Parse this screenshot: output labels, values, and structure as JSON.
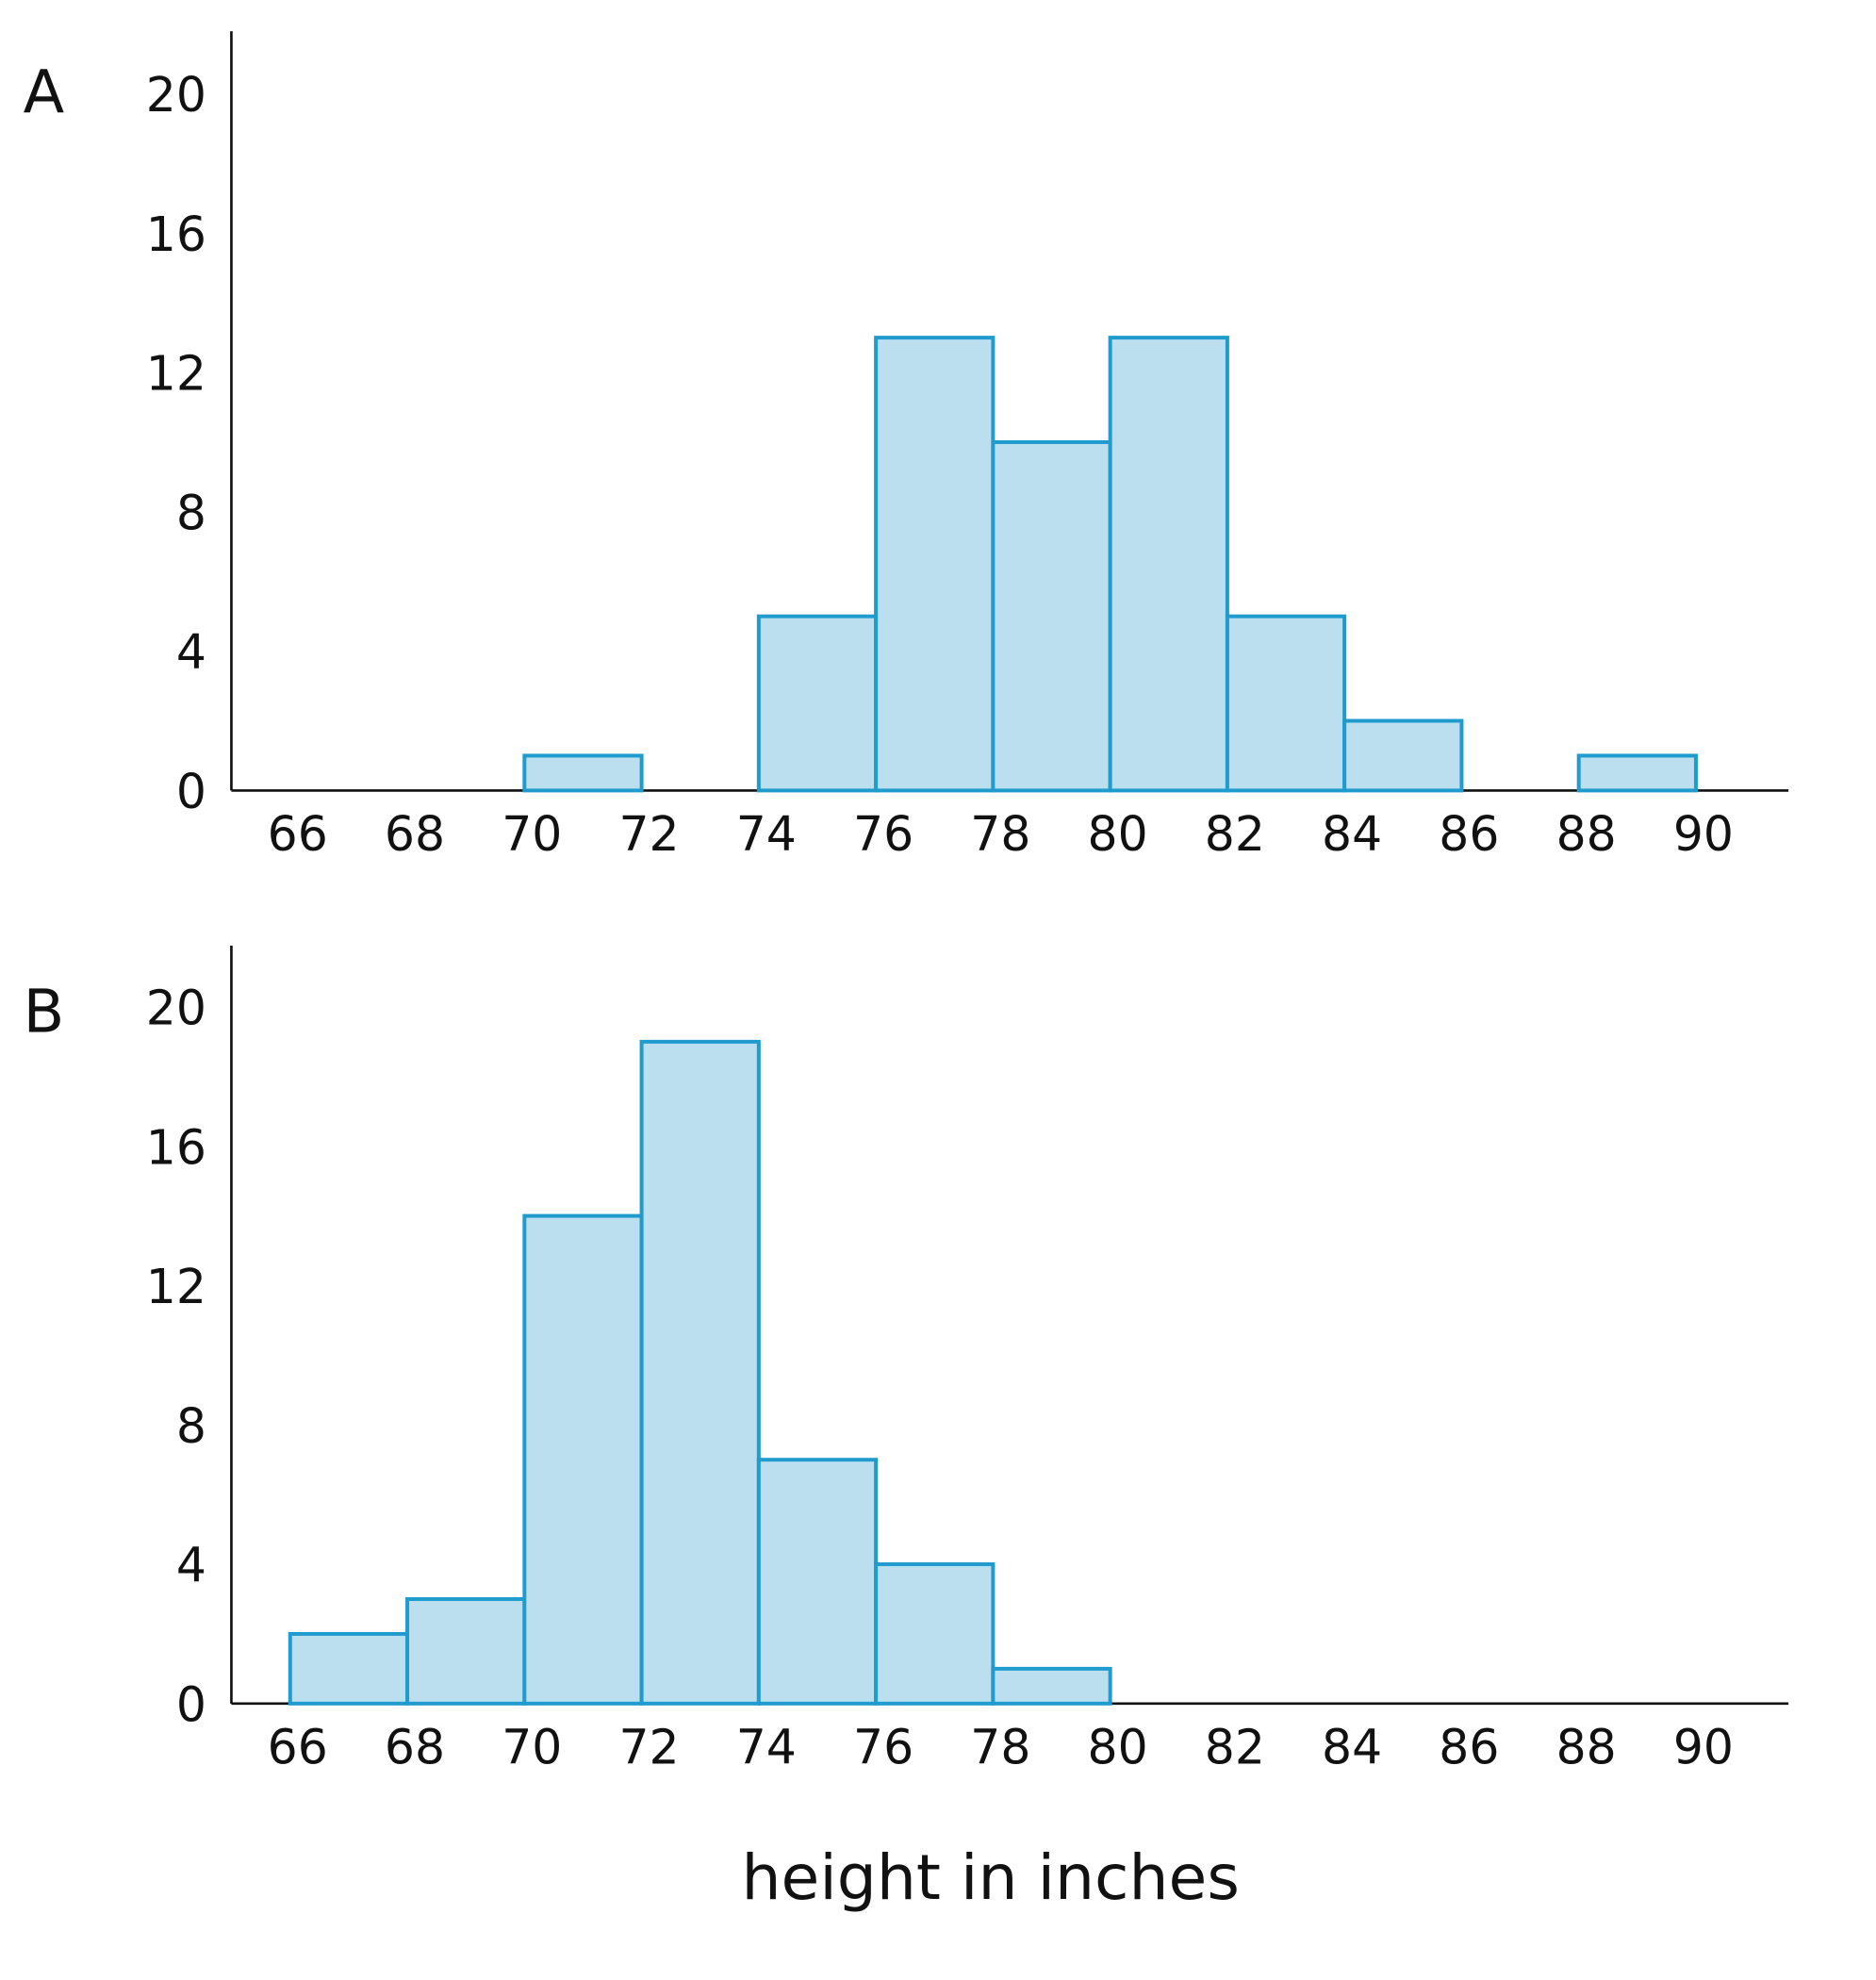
{
  "colors": {
    "bar_fill": "#bcdfef",
    "bar_stroke": "#1f9bcd",
    "axis": "#111111"
  },
  "shared_xlabel": "height in inches",
  "chart_data": [
    {
      "type": "bar",
      "panel_label": "A",
      "bin_edges": [
        66,
        68,
        70,
        72,
        74,
        76,
        78,
        80,
        82,
        84,
        86,
        88,
        90
      ],
      "xticks": [
        "66",
        "68",
        "70",
        "72",
        "74",
        "76",
        "78",
        "80",
        "82",
        "84",
        "86",
        "88",
        "90"
      ],
      "values": [
        0,
        0,
        1,
        0,
        5,
        13,
        10,
        13,
        5,
        2,
        0,
        1
      ],
      "yticks": [
        "0",
        "4",
        "8",
        "12",
        "16",
        "20"
      ],
      "xlim": [
        65,
        92
      ],
      "ylim": [
        0,
        21.7
      ],
      "grid": false
    },
    {
      "type": "bar",
      "panel_label": "B",
      "bin_edges": [
        66,
        68,
        70,
        72,
        74,
        76,
        78,
        80,
        82,
        84,
        86,
        88,
        90
      ],
      "xticks": [
        "66",
        "68",
        "70",
        "72",
        "74",
        "76",
        "78",
        "80",
        "82",
        "84",
        "86",
        "88",
        "90"
      ],
      "values": [
        2,
        3,
        14,
        19,
        7,
        4,
        1,
        0,
        0,
        0,
        0,
        0
      ],
      "yticks": [
        "0",
        "4",
        "8",
        "12",
        "16",
        "20"
      ],
      "xlim": [
        65,
        92
      ],
      "ylim": [
        0,
        21.7
      ],
      "grid": false
    }
  ]
}
